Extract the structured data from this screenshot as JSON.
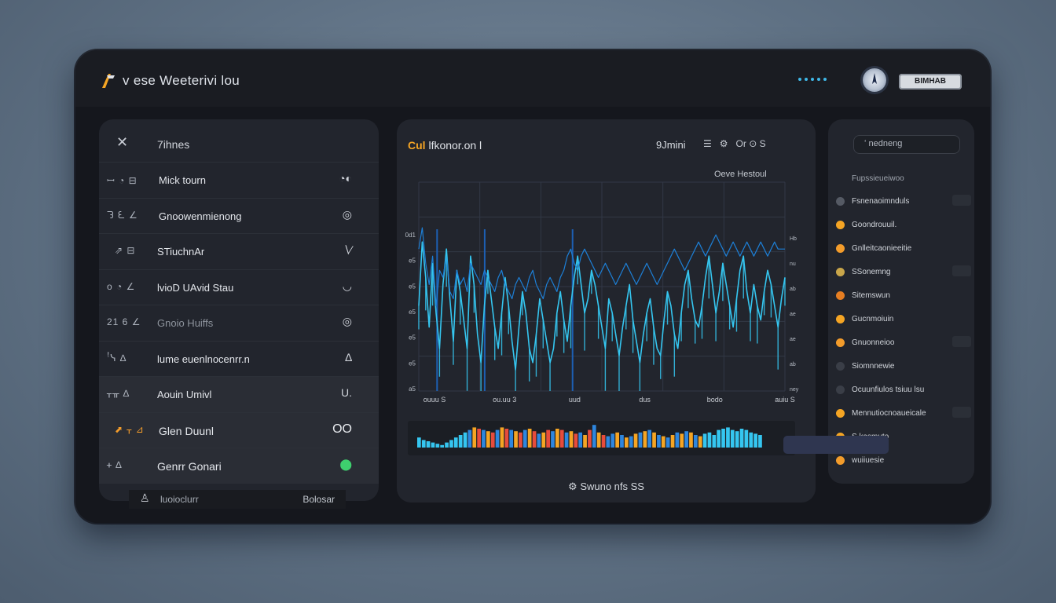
{
  "app": {
    "title": "v ese Weeterivi lou"
  },
  "header": {
    "badge": "BIMHAB"
  },
  "left_panel": {
    "title": "7ihnes",
    "rows": [
      {
        "icons": "ꟷ ◔ ⊟",
        "label": "Mick tourn",
        "right": "◔◐"
      },
      {
        "icons": "ᘊ ᘍ ∠",
        "label": "Gnoowenmienong",
        "right": "◎"
      },
      {
        "icons": "⇗ ⊟",
        "label": "STiuchnAr",
        "right": "∖∕"
      },
      {
        "icons": "o ◔ ∠",
        "label": "lvioD UAvid Stau",
        "right": "◡"
      },
      {
        "icons": "21 6 ∠",
        "label": "Gnoio Huiffs",
        "right": "◎"
      },
      {
        "icons": "ꜝᓭ ∆",
        "label": "lume euenlnocenrr.n",
        "right": "∆"
      },
      {
        "icons": "ᚁᚂ ∆",
        "label": "Aouin Umivl",
        "right": "U."
      },
      {
        "icons": "⬈ ᚁ ⊿",
        "label": "Glen Duunl",
        "right": "OO"
      },
      {
        "icons": "ᚐ ∆",
        "label": "Genrr Gonari",
        "right": "⬤"
      }
    ],
    "footer_left": "luoioclurr",
    "footer_right": "Bolosar"
  },
  "mid_panel": {
    "title_accent": "Cul",
    "title": "lfkonor.on l",
    "mode": "9Jmini",
    "tool_text": "Or ⊙ S",
    "sub": "Oeve Hestoul",
    "footer": "Swuno nfs SS"
  },
  "chart_data": {
    "type": "line",
    "y_tick_labels": [
      "0d1",
      "e5",
      "e5",
      "e5",
      "e5",
      "e5",
      "a5"
    ],
    "y2_tick_labels": [
      "Hb",
      "nu",
      "ab",
      "ae",
      "ae",
      "ab",
      "ney"
    ],
    "x_tick_labels": [
      "ouuu S",
      "ou.uu 3",
      "uud",
      "dus",
      "bodo",
      "auiu S"
    ],
    "series": [
      {
        "values": [
          120,
          210,
          160,
          90,
          180,
          110,
          60,
          150,
          200,
          130,
          70,
          170,
          140,
          100,
          60,
          190,
          150,
          80,
          40,
          120,
          170,
          130,
          90,
          60,
          110,
          160,
          120,
          70,
          30,
          90,
          140,
          110,
          60,
          40,
          80,
          130,
          100,
          70,
          40,
          60,
          110,
          140,
          100,
          70,
          120,
          160,
          190,
          150,
          110,
          130,
          170,
          150,
          120,
          90,
          60,
          130,
          110,
          80,
          50,
          90,
          120,
          150,
          100,
          70,
          40,
          80,
          110,
          130,
          90,
          60,
          50,
          100,
          140,
          120,
          80,
          60,
          110,
          150,
          170,
          130,
          100,
          90,
          120,
          160,
          190,
          150,
          110,
          140,
          180,
          150,
          120,
          90,
          130,
          170,
          190,
          140,
          110,
          150,
          120,
          100,
          140,
          170,
          150,
          120,
          90,
          130,
          160
        ]
      },
      {
        "values": [
          200,
          230,
          180,
          150,
          190,
          120,
          170,
          160,
          190,
          140,
          130,
          170,
          150,
          160,
          140,
          180,
          170,
          160,
          150,
          170,
          160,
          150,
          140,
          160,
          170,
          150,
          140,
          130,
          150,
          160,
          150,
          140,
          160,
          170,
          150,
          140,
          130,
          150,
          160,
          150,
          140,
          160,
          170,
          190,
          200,
          180,
          170,
          190,
          200,
          190,
          180,
          170,
          160,
          170,
          180,
          170,
          160,
          150,
          160,
          170,
          180,
          170,
          160,
          150,
          160,
          170,
          180,
          170,
          160,
          150,
          160,
          170,
          180,
          190,
          200,
          190,
          180,
          170,
          180,
          190,
          200,
          210,
          200,
          190,
          200,
          210,
          220,
          210,
          200,
          190,
          200,
          210,
          200,
          190,
          200,
          210,
          200,
          190,
          200,
          210,
          200,
          190,
          200,
          210,
          200,
          200,
          200
        ]
      }
    ],
    "colors": {
      "bright": "#35c6f0",
      "dim": "#1d7fd6",
      "grid": "#323846"
    },
    "mini_bars": {
      "colors": [
        "#35c6f0",
        "#f5a524",
        "#e74c3c",
        "#2e86de"
      ],
      "values": [
        8,
        6,
        5,
        4,
        3,
        2,
        4,
        6,
        8,
        10,
        12,
        14,
        16,
        15,
        14,
        13,
        12,
        14,
        16,
        15,
        14,
        13,
        12,
        14,
        15,
        13,
        11,
        12,
        14,
        13,
        15,
        14,
        12,
        13,
        11,
        12,
        10,
        14,
        18,
        12,
        10,
        9,
        11,
        12,
        10,
        8,
        9,
        11,
        12,
        13,
        14,
        12,
        10,
        9,
        8,
        10,
        12,
        11,
        13,
        12,
        10,
        9,
        11,
        12,
        10,
        14,
        15,
        16,
        14,
        13,
        15,
        14,
        12,
        11,
        10
      ]
    }
  },
  "right_panel": {
    "search_placeholder": "ʻ nedneng",
    "header": "Fupssieueiwoo",
    "items": [
      {
        "text": "Fsnenaoimnduls",
        "color": "#555a64"
      },
      {
        "text": "Goondrouuil.",
        "color": "#f5a524"
      },
      {
        "text": "Gnlleitcaonieeitie",
        "color": "#f39c2b"
      },
      {
        "text": "SSonemng",
        "color": "#c9a64a"
      },
      {
        "text": "Sitemswun",
        "color": "#e67e22"
      },
      {
        "text": "Gucnmoiuin",
        "color": "#f5a524"
      },
      {
        "text": "Gnuonneioo",
        "color": "#f39c2b"
      },
      {
        "text": "Siomnnewie",
        "color": "#3a3e47"
      },
      {
        "text": "Ocuunfiulos tsiuu lsu",
        "color": "#3a3e47"
      },
      {
        "text": "Mennutiocnoaueicale",
        "color": "#f5a524"
      },
      {
        "text": "S.kasmuto",
        "color": "#f5a524"
      },
      {
        "text": "wuiiuesie",
        "color": "#f39c2b"
      }
    ]
  }
}
